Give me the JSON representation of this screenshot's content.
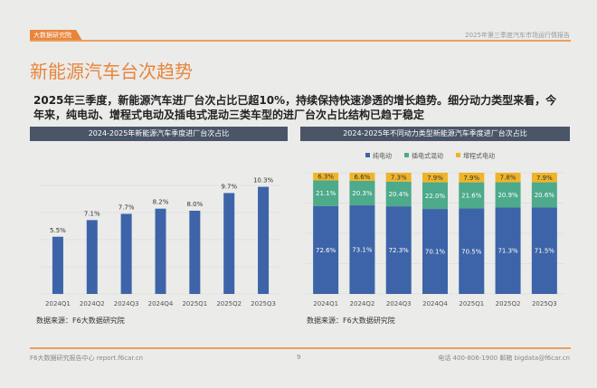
{
  "header": {
    "logo_text": "大数据研究院",
    "report_title": "2025年第三季度汽车市场运行情报告"
  },
  "title": "新能源汽车台次趋势",
  "summary": "2025年三季度，新能源汽车进厂台次占比已超10%，持续保持快速渗透的增长趋势。细分动力类型来看，今年来，纯电动、增程式电动及插电式混动三类车型的进厂台次占比结构已趋于稳定",
  "chart_data": [
    {
      "type": "bar",
      "title": "2024-2025年新能源汽车季度进厂台次占比",
      "categories": [
        "2024Q1",
        "2024Q2",
        "2024Q3",
        "2024Q4",
        "2025Q1",
        "2025Q2",
        "2025Q3"
      ],
      "values": [
        5.5,
        7.1,
        7.7,
        8.2,
        8.0,
        9.7,
        10.3
      ],
      "labels": [
        "5.5%",
        "7.1%",
        "7.7%",
        "8.2%",
        "8.0%",
        "9.7%",
        "10.3%"
      ],
      "color": "#3d64a8",
      "grid": true,
      "source": "数据来源：F6大数据研究院"
    },
    {
      "type": "bar",
      "stacked": true,
      "title": "2024-2025年不同动力类型新能源汽车季度进厂台次占比",
      "categories": [
        "2024Q1",
        "2024Q2",
        "2024Q3",
        "2024Q4",
        "2025Q1",
        "2025Q2",
        "2025Q3"
      ],
      "series": [
        {
          "name": "纯电动",
          "color": "#3d64a8",
          "values": [
            72.6,
            73.1,
            72.3,
            70.1,
            70.5,
            71.3,
            71.5
          ]
        },
        {
          "name": "插电式混动",
          "color": "#4daa8a",
          "values": [
            21.1,
            20.3,
            20.4,
            22.0,
            21.6,
            20.9,
            20.6
          ]
        },
        {
          "name": "增程式电动",
          "color": "#f0b429",
          "values": [
            6.3,
            6.6,
            7.3,
            7.9,
            7.9,
            7.8,
            7.9
          ]
        }
      ],
      "legend": "top",
      "grid": true,
      "source": "数据来源：F6大数据研究院"
    }
  ],
  "footer": {
    "left": "F6大数据研究报告中心 report.f6car.cn",
    "page": "9",
    "right": "电话 400-806-1900 邮箱 bigdata@f6car.cn"
  }
}
